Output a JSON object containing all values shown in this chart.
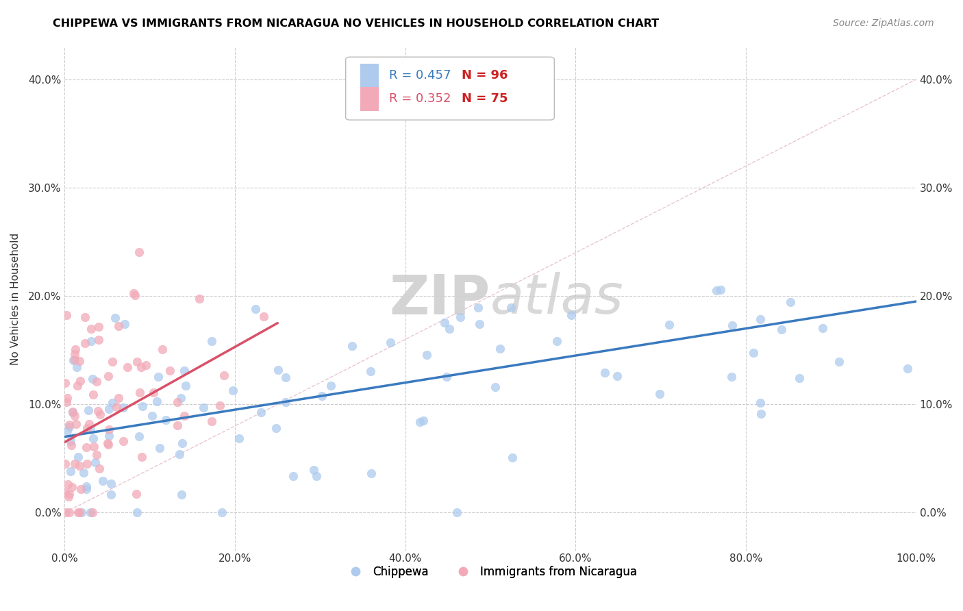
{
  "title": "CHIPPEWA VS IMMIGRANTS FROM NICARAGUA NO VEHICLES IN HOUSEHOLD CORRELATION CHART",
  "source_text": "Source: ZipAtlas.com",
  "ylabel": "No Vehicles in Household",
  "watermark_zip": "ZIP",
  "watermark_atlas": "atlas",
  "legend_blue_r": "R = 0.457",
  "legend_blue_n": "N = 96",
  "legend_pink_r": "R = 0.352",
  "legend_pink_n": "N = 75",
  "xlim": [
    0.0,
    100.0
  ],
  "ylim": [
    -3.5,
    43.0
  ],
  "xtick_labels": [
    "0.0%",
    "20.0%",
    "40.0%",
    "60.0%",
    "80.0%",
    "100.0%"
  ],
  "xtick_vals": [
    0,
    20,
    40,
    60,
    80,
    100
  ],
  "ytick_labels": [
    "0.0%",
    "10.0%",
    "20.0%",
    "30.0%",
    "40.0%"
  ],
  "ytick_vals": [
    0,
    10,
    20,
    30,
    40
  ],
  "blue_scatter_color": "#aecbee",
  "pink_scatter_color": "#f2aab8",
  "blue_line_color": "#3a7abf",
  "pink_line_color": "#d95068",
  "diag_line_color": "#d8a0b0",
  "background_color": "#ffffff",
  "grid_color": "#cccccc",
  "blue_trend_x0": 0,
  "blue_trend_x1": 100,
  "blue_trend_y0": 7.0,
  "blue_trend_y1": 19.5,
  "pink_trend_x0": 0,
  "pink_trend_x1": 25,
  "pink_trend_y0": 6.5,
  "pink_trend_y1": 17.5,
  "diag_x0": 0,
  "diag_x1": 100,
  "diag_y0": 0,
  "diag_y1": 40,
  "blue_seed": 42,
  "pink_seed": 99,
  "n_blue": 96,
  "n_pink": 75
}
